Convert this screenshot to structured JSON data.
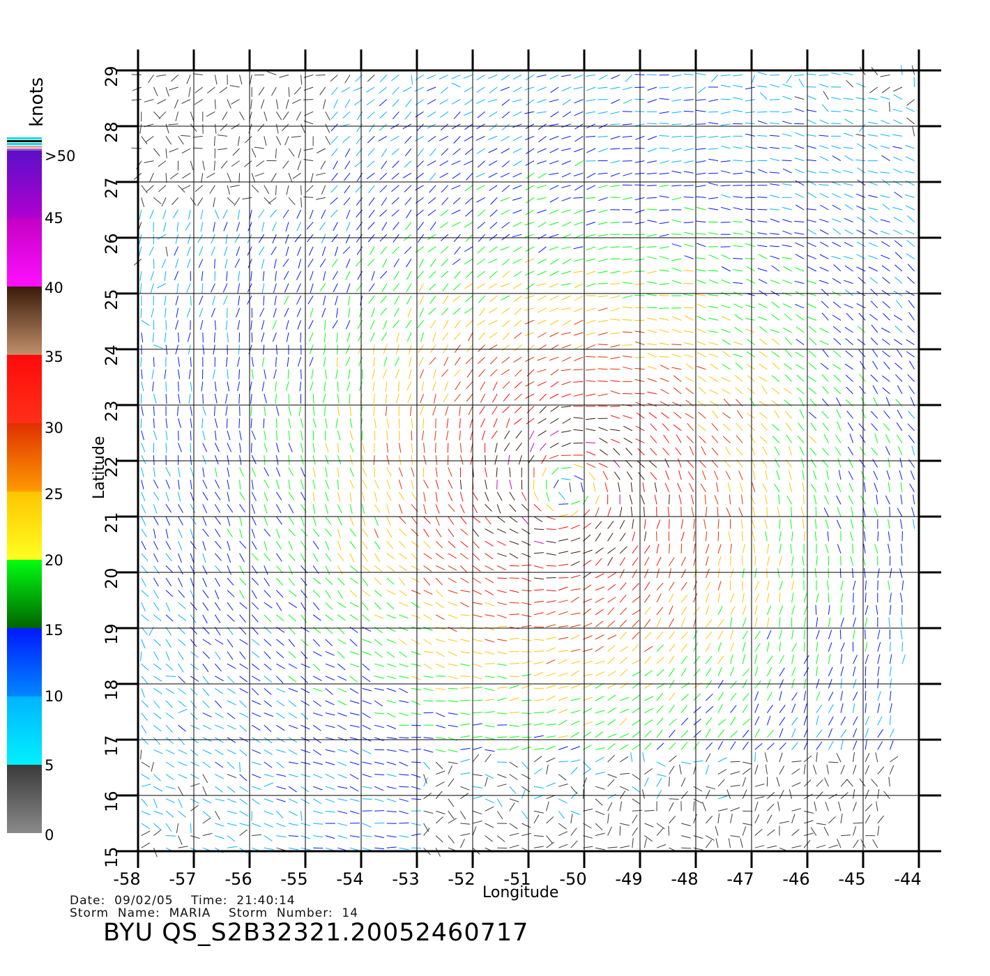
{
  "colorbar": {
    "unit": "knots",
    "labels": [
      "0",
      "5",
      "10",
      "15",
      "20",
      "25",
      "30",
      "35",
      "40",
      "45",
      ">50"
    ],
    "segments": [
      {
        "from": 0,
        "to": 5,
        "top": "#3a3a3a",
        "bottom": "#8a8a8a"
      },
      {
        "from": 5,
        "to": 10,
        "top": "#00b4ff",
        "bottom": "#00f0ff"
      },
      {
        "from": 10,
        "to": 15,
        "top": "#0018ff",
        "bottom": "#0088ff"
      },
      {
        "from": 15,
        "to": 20,
        "top": "#00ff10",
        "bottom": "#006400"
      },
      {
        "from": 20,
        "to": 25,
        "top": "#ffc400",
        "bottom": "#ffff20"
      },
      {
        "from": 25,
        "to": 30,
        "top": "#e03000",
        "bottom": "#ff9a00"
      },
      {
        "from": 30,
        "to": 35,
        "top": "#ff0a0a",
        "bottom": "#ff3018"
      },
      {
        "from": 35,
        "to": 40,
        "top": "#3a1a0a",
        "bottom": "#c0906a"
      },
      {
        "from": 40,
        "to": 45,
        "top": "#c400c4",
        "bottom": "#ff10ff"
      },
      {
        "from": 45,
        "to": 50,
        "top": "#5a10c8",
        "bottom": "#b000d0"
      }
    ]
  },
  "map": {
    "xlabel": "Longitude",
    "ylabel": "Latitude",
    "lon_range": [
      -58,
      -44
    ],
    "lat_range": [
      15,
      29
    ],
    "lon_ticks": [
      "-58",
      "-57",
      "-56",
      "-55",
      "-54",
      "-53",
      "-52",
      "-51",
      "-50",
      "-49",
      "-48",
      "-47",
      "-46",
      "-45",
      "-44"
    ],
    "lat_ticks": [
      "15",
      "16",
      "17",
      "18",
      "19",
      "20",
      "21",
      "22",
      "23",
      "24",
      "25",
      "26",
      "27",
      "28",
      "29"
    ],
    "grid": true
  },
  "wind_field": {
    "storm_center": {
      "lon": -50.3,
      "lat": 21.5
    },
    "max_speed_knots": 40,
    "swath_edges": {
      "east_lon": -44.6,
      "south_lat": 15
    }
  },
  "footer": {
    "date_line": "Date:  09/02/05    Time:  21:40:14",
    "storm_line": "Storm  Name:  MARIA    Storm  Number:  14",
    "product": "BYU  QS_S2B32321.20052460717"
  }
}
